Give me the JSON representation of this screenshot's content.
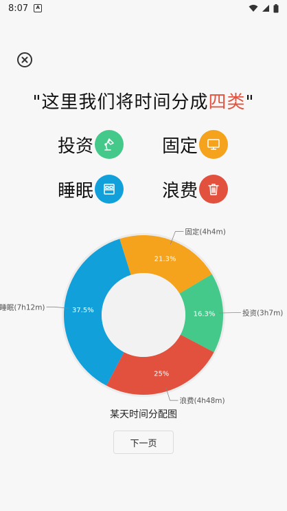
{
  "status_bar": {
    "time": "8:07",
    "notif_letter": "A"
  },
  "headline": {
    "prefix": "\"这里我们将时间分成",
    "accent": "四类",
    "suffix": "\""
  },
  "categories": [
    {
      "label": "投资",
      "icon": "lamp-icon",
      "color": "#44c98a"
    },
    {
      "label": "固定",
      "icon": "monitor-icon",
      "color": "#f5a21c"
    },
    {
      "label": "睡眠",
      "icon": "bed-icon",
      "color": "#12a0db"
    },
    {
      "label": "浪费",
      "icon": "trash-icon",
      "color": "#e2503e"
    }
  ],
  "chart_data": {
    "type": "pie",
    "donut": true,
    "slices": [
      {
        "label": "投资(3h7m)",
        "percent": 16.3,
        "percent_text": "16.3%",
        "color": "#44c98a"
      },
      {
        "label": "浪费(4h48m)",
        "percent": 25,
        "percent_text": "25%",
        "color": "#e2503e"
      },
      {
        "label": "睡眠(7h12m)",
        "percent": 37.5,
        "percent_text": "37.5%",
        "color": "#12a0db"
      },
      {
        "label": "固定(4h4m)",
        "percent": 21.3,
        "percent_text": "21.3%",
        "color": "#f5a21c"
      }
    ],
    "title": "某天时间分配图"
  },
  "next_button": {
    "label": "下一页"
  }
}
